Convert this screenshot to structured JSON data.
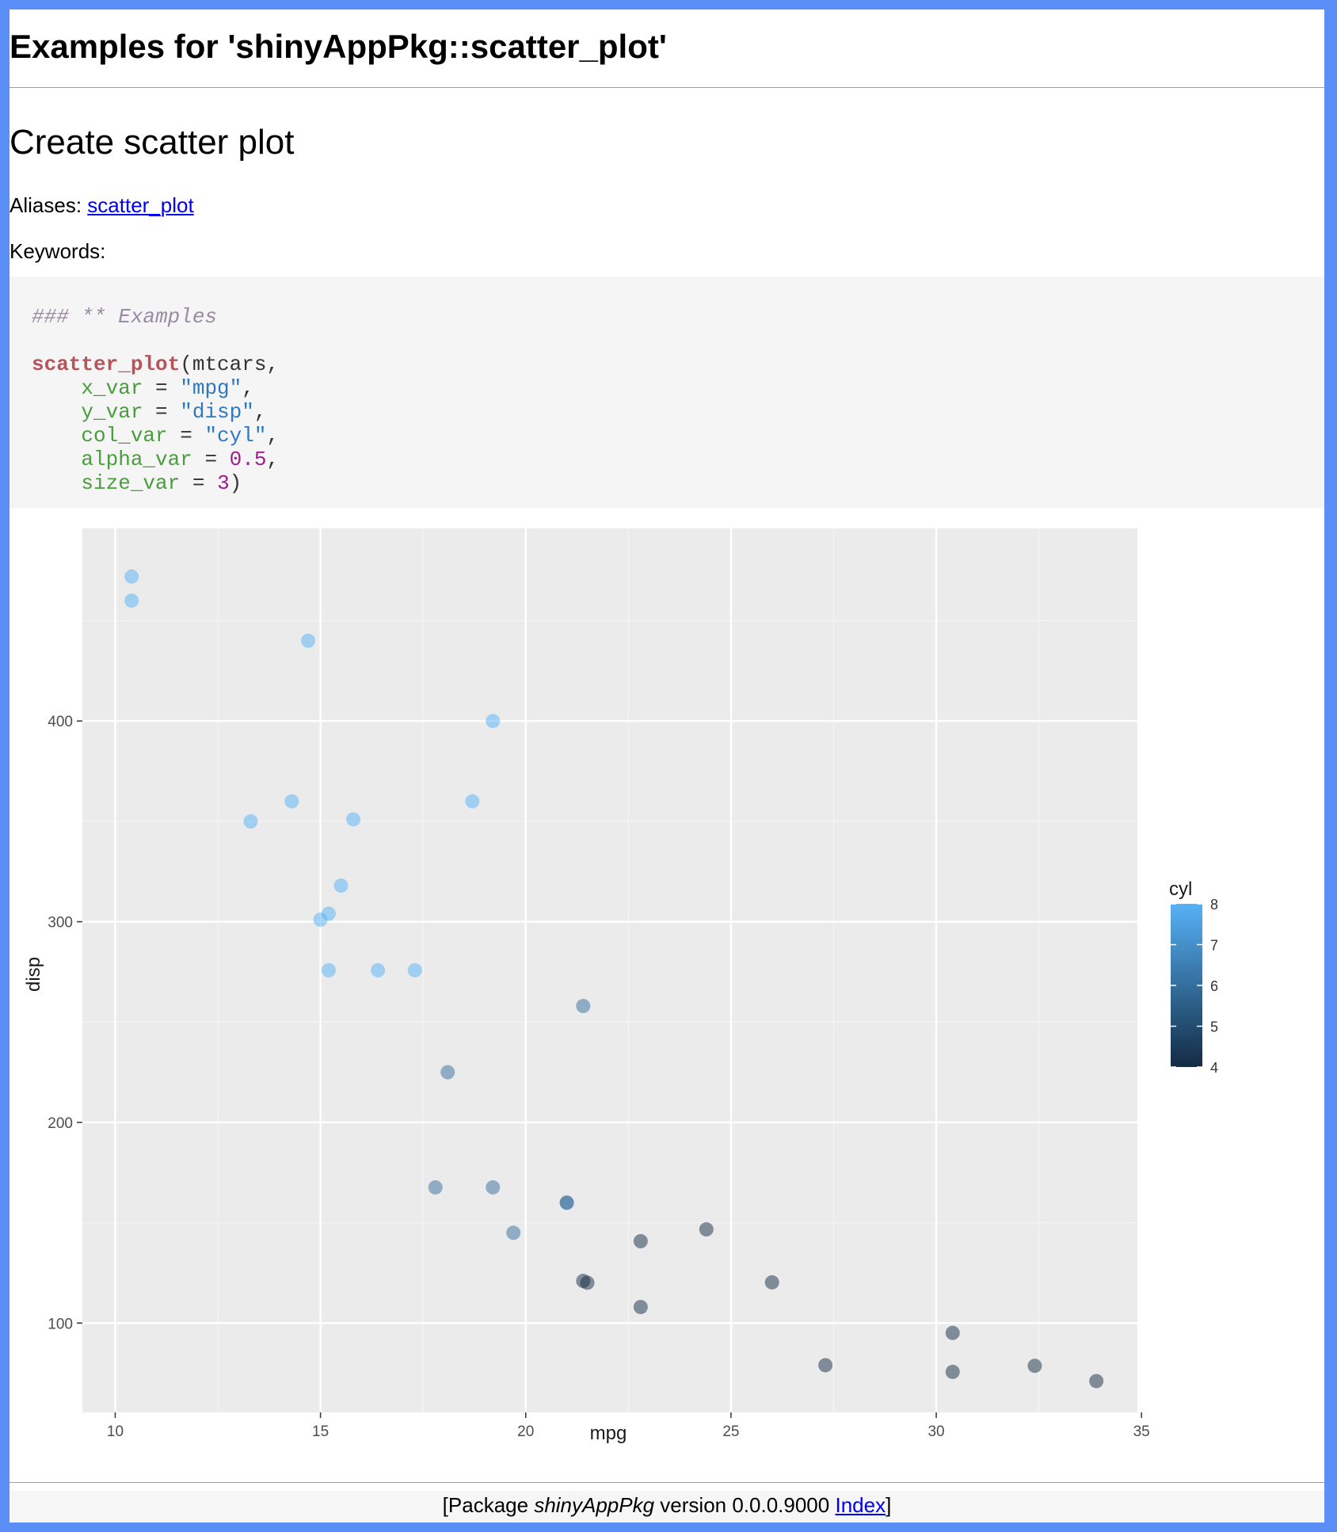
{
  "page": {
    "title": "Examples for 'shinyAppPkg::scatter_plot'",
    "subtitle": "Create scatter plot",
    "aliases_label": "Aliases:",
    "aliases_link": "scatter_plot",
    "keywords_label": "Keywords:"
  },
  "code": {
    "comment": "### ** Examples",
    "func": "scatter_plot",
    "first_arg": "(mtcars,",
    "args": [
      {
        "name": "x_var",
        "op": " = ",
        "value": "\"mpg\"",
        "value_type": "string",
        "end": ","
      },
      {
        "name": "y_var",
        "op": " = ",
        "value": "\"disp\"",
        "value_type": "string",
        "end": ","
      },
      {
        "name": "col_var",
        "op": " = ",
        "value": "\"cyl\"",
        "value_type": "string",
        "end": ","
      },
      {
        "name": "alpha_var",
        "op": " = ",
        "value": "0.5",
        "value_type": "number",
        "end": ","
      },
      {
        "name": "size_var",
        "op": " = ",
        "value": "3",
        "value_type": "number",
        "end": ")"
      }
    ]
  },
  "chart_data": {
    "type": "scatter",
    "xlabel": "mpg",
    "ylabel": "disp",
    "xlim": [
      9.2,
      34.9
    ],
    "ylim": [
      55.5,
      496
    ],
    "x_ticks": [
      10,
      15,
      20,
      25,
      30,
      35
    ],
    "y_ticks": [
      100,
      200,
      300,
      400
    ],
    "grid": true,
    "legend": {
      "title": "cyl",
      "ticks": [
        4,
        5,
        6,
        7,
        8
      ],
      "placement": "right"
    },
    "colors": {
      "low": "#132b43",
      "high": "#56b1f7",
      "panel": "#ebebeb"
    },
    "alpha": 0.5,
    "points": [
      {
        "x": 21.0,
        "y": 160,
        "cyl": 6
      },
      {
        "x": 21.0,
        "y": 160,
        "cyl": 6
      },
      {
        "x": 22.8,
        "y": 108,
        "cyl": 4
      },
      {
        "x": 21.4,
        "y": 258,
        "cyl": 6
      },
      {
        "x": 18.7,
        "y": 360,
        "cyl": 8
      },
      {
        "x": 18.1,
        "y": 225,
        "cyl": 6
      },
      {
        "x": 14.3,
        "y": 360,
        "cyl": 8
      },
      {
        "x": 24.4,
        "y": 146.7,
        "cyl": 4
      },
      {
        "x": 22.8,
        "y": 140.8,
        "cyl": 4
      },
      {
        "x": 19.2,
        "y": 167.6,
        "cyl": 6
      },
      {
        "x": 17.8,
        "y": 167.6,
        "cyl": 6
      },
      {
        "x": 16.4,
        "y": 275.8,
        "cyl": 8
      },
      {
        "x": 17.3,
        "y": 275.8,
        "cyl": 8
      },
      {
        "x": 15.2,
        "y": 275.8,
        "cyl": 8
      },
      {
        "x": 10.4,
        "y": 472,
        "cyl": 8
      },
      {
        "x": 10.4,
        "y": 460,
        "cyl": 8
      },
      {
        "x": 14.7,
        "y": 440,
        "cyl": 8
      },
      {
        "x": 32.4,
        "y": 78.7,
        "cyl": 4
      },
      {
        "x": 30.4,
        "y": 75.7,
        "cyl": 4
      },
      {
        "x": 33.9,
        "y": 71.1,
        "cyl": 4
      },
      {
        "x": 21.5,
        "y": 120.1,
        "cyl": 4
      },
      {
        "x": 15.5,
        "y": 318,
        "cyl": 8
      },
      {
        "x": 15.2,
        "y": 304,
        "cyl": 8
      },
      {
        "x": 13.3,
        "y": 350,
        "cyl": 8
      },
      {
        "x": 19.2,
        "y": 400,
        "cyl": 8
      },
      {
        "x": 27.3,
        "y": 79,
        "cyl": 4
      },
      {
        "x": 26.0,
        "y": 120.3,
        "cyl": 4
      },
      {
        "x": 30.4,
        "y": 95.1,
        "cyl": 4
      },
      {
        "x": 15.8,
        "y": 351,
        "cyl": 8
      },
      {
        "x": 19.7,
        "y": 145,
        "cyl": 6
      },
      {
        "x": 15.0,
        "y": 301,
        "cyl": 8
      },
      {
        "x": 21.4,
        "y": 121,
        "cyl": 4
      }
    ]
  },
  "footer": {
    "prefix": "[Package ",
    "pkg": "shinyAppPkg",
    "version": " version 0.0.0.9000 ",
    "index_link": "Index",
    "suffix": "]"
  }
}
